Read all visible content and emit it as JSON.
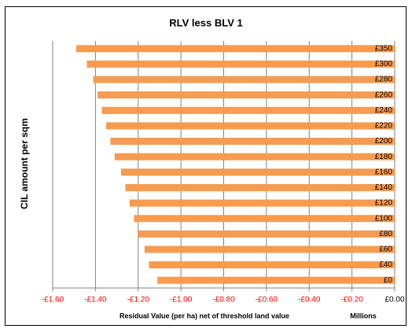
{
  "chart_data": {
    "type": "bar",
    "orientation": "horizontal",
    "title": "RLV less BLV 1",
    "y_label": "CIL amount per sqm",
    "x_label": "Residual Value (per ha) net of threshold land value",
    "x_unit_label": "Millions",
    "categories": [
      "£0",
      "£40",
      "£60",
      "£80",
      "£100",
      "£120",
      "£140",
      "£160",
      "£180",
      "£200",
      "£220",
      "£240",
      "£260",
      "£280",
      "£300",
      "£350"
    ],
    "values": [
      -1.11,
      -1.15,
      -1.17,
      -1.2,
      -1.22,
      -1.24,
      -1.26,
      -1.28,
      -1.31,
      -1.33,
      -1.35,
      -1.37,
      -1.39,
      -1.41,
      -1.44,
      -1.49
    ],
    "color": "#f79b50",
    "xlim": [
      -1.6,
      0
    ],
    "xticks": [
      {
        "value": -1.6,
        "label": "-£1.60"
      },
      {
        "value": -1.4,
        "label": "-£1.40"
      },
      {
        "value": -1.2,
        "label": "-£1.20"
      },
      {
        "value": -1.0,
        "label": "-£1.00"
      },
      {
        "value": -0.8,
        "label": "-£0.80"
      },
      {
        "value": -0.6,
        "label": "-£0.60"
      },
      {
        "value": -0.4,
        "label": "-£0.40"
      },
      {
        "value": -0.2,
        "label": "-£0.20"
      },
      {
        "value": 0,
        "label": "£0.00"
      }
    ],
    "negative_tick_color": "#ff0000",
    "grid": true
  }
}
